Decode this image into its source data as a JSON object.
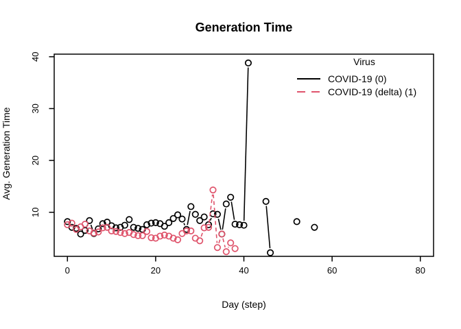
{
  "chart_data": {
    "type": "line",
    "title": "Generation Time",
    "xlabel": "Day (step)",
    "ylabel": "Avg. Generation Time",
    "xlim": [
      -3,
      83
    ],
    "ylim": [
      1.5,
      40.5
    ],
    "x_ticks": [
      0,
      20,
      40,
      60,
      80
    ],
    "y_ticks": [
      10,
      20,
      30,
      40
    ],
    "grid": false,
    "marker": "open-circle",
    "legend": {
      "title": "Virus",
      "position": "top-right"
    },
    "series": [
      {
        "name": "COVID-19 (0)",
        "color": "#000000",
        "line_style": "solid",
        "marker": "open-circle",
        "segments": [
          {
            "x": [
              0,
              1,
              2,
              3,
              4,
              5,
              6,
              7,
              8,
              9,
              10,
              11,
              12,
              13,
              14,
              15,
              16,
              17,
              18,
              19,
              20,
              21,
              22,
              23,
              24,
              25,
              26,
              27,
              28,
              29,
              30,
              31,
              32,
              33,
              34,
              35,
              36,
              37,
              38,
              39,
              40,
              41
            ],
            "y": [
              8.2,
              7.1,
              6.9,
              5.8,
              6.5,
              8.4,
              5.9,
              6.8,
              7.8,
              8.1,
              7.4,
              7.0,
              7.1,
              7.5,
              8.6,
              7.1,
              6.9,
              6.7,
              7.6,
              7.9,
              8.0,
              7.8,
              7.3,
              8.0,
              8.8,
              9.5,
              8.7,
              6.7,
              11.1,
              9.6,
              8.4,
              9.1,
              7.6,
              9.7,
              9.6,
              5.8,
              11.6,
              12.9,
              7.7,
              7.6,
              7.5,
              38.8
            ]
          },
          {
            "x": [
              45,
              46
            ],
            "y": [
              12.1,
              2.2
            ]
          },
          {
            "x": [
              52
            ],
            "y": [
              8.2
            ]
          },
          {
            "x": [
              56
            ],
            "y": [
              7.1
            ]
          }
        ]
      },
      {
        "name": "COVID-19 (delta) (1)",
        "color": "#df536b",
        "line_style": "dashed",
        "marker": "open-circle",
        "segments": [
          {
            "x": [
              0,
              1,
              2,
              3,
              4,
              5,
              6,
              7,
              8,
              9,
              10,
              11,
              12,
              13,
              14,
              15,
              16,
              17,
              18,
              19,
              20,
              21,
              22,
              23,
              24,
              25,
              26,
              27,
              28,
              29,
              30,
              31,
              32,
              33,
              34,
              35,
              36,
              37,
              38
            ],
            "y": [
              7.6,
              7.9,
              6.7,
              7.2,
              7.7,
              6.4,
              6.0,
              6.2,
              7.0,
              7.1,
              6.4,
              6.3,
              6.1,
              5.9,
              6.1,
              5.7,
              5.5,
              5.5,
              6.3,
              5.1,
              5.0,
              5.4,
              5.6,
              5.4,
              5.0,
              4.7,
              5.9,
              6.4,
              6.4,
              5.0,
              4.5,
              7.0,
              7.1,
              14.3,
              3.2,
              5.8,
              2.4,
              4.1,
              3.0
            ]
          }
        ]
      }
    ]
  }
}
